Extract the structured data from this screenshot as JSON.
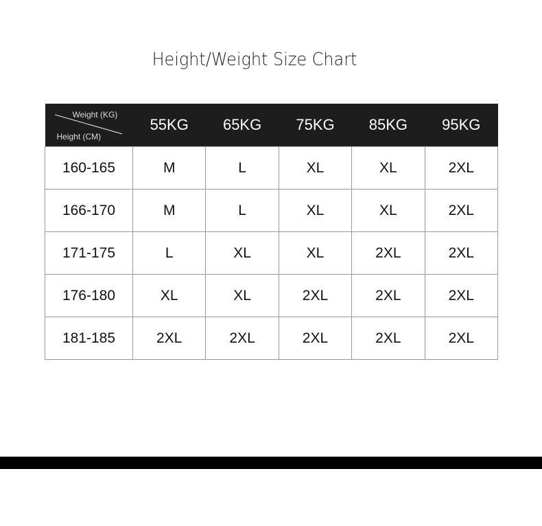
{
  "title": "Height/Weight Size Chart",
  "table": {
    "corner": {
      "weight_label": "Weight (KG)",
      "height_label": "Height (CM)"
    },
    "columns": [
      "55KG",
      "65KG",
      "75KG",
      "85KG",
      "95KG"
    ],
    "rows": [
      {
        "height": "160-165",
        "sizes": [
          "M",
          "L",
          "XL",
          "XL",
          "2XL"
        ]
      },
      {
        "height": "166-170",
        "sizes": [
          "M",
          "L",
          "XL",
          "XL",
          "2XL"
        ]
      },
      {
        "height": "171-175",
        "sizes": [
          "L",
          "XL",
          "XL",
          "2XL",
          "2XL"
        ]
      },
      {
        "height": "176-180",
        "sizes": [
          "XL",
          "XL",
          "2XL",
          "2XL",
          "2XL"
        ]
      },
      {
        "height": "181-185",
        "sizes": [
          "2XL",
          "2XL",
          "2XL",
          "2XL",
          "2XL"
        ]
      }
    ]
  }
}
